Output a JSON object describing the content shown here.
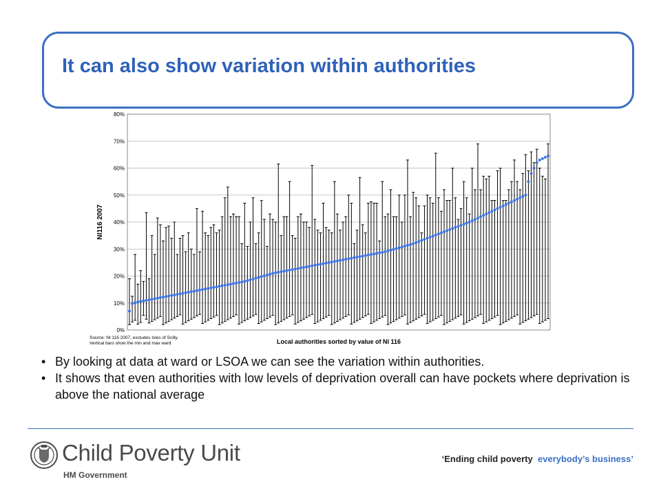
{
  "slide": {
    "title": "It can also show variation within authorities",
    "bullets": [
      "By looking at data at ward or LSOA we can see the variation within authorities.",
      "It shows that even authorities with low levels of deprivation overall can have pockets where deprivation is above the national average"
    ],
    "logo": {
      "name": "Child Poverty Unit",
      "sub": "HM Government",
      "icon": "crest-icon"
    },
    "slogan": {
      "part1": "‘Ending child poverty",
      "part2": "everybody’s business’"
    },
    "colors": {
      "accent": "#3b6fc4",
      "title": "#2f62b8",
      "marker": "#3d72e0"
    }
  },
  "chart_data": {
    "type": "scatter",
    "xlabel": "Local authorities sorted by value of NI 116",
    "ylabel": "NI116 2007",
    "ylim": [
      0,
      80
    ],
    "yticks": [
      0,
      10,
      20,
      30,
      40,
      50,
      60,
      70,
      80
    ],
    "ytick_labels": [
      "0%",
      "10%",
      "20%",
      "30%",
      "40%",
      "50%",
      "60%",
      "70%",
      "80%"
    ],
    "grid": true,
    "source_lines": [
      "Source: NI 116 2007, excludes Isles of Scilly.",
      "Vertical bars show the min and max ward"
    ],
    "series": [
      {
        "x": [
          1,
          2,
          3,
          4,
          5,
          6,
          7,
          8,
          9,
          10,
          11,
          12,
          13,
          14,
          15,
          16,
          17,
          18,
          19,
          20,
          21,
          22,
          23,
          24,
          25,
          26,
          27,
          28,
          29,
          30,
          31,
          32,
          33,
          34,
          35,
          36,
          37,
          38,
          39,
          40,
          41,
          42,
          43,
          44,
          45,
          46,
          47,
          48,
          49,
          50,
          51,
          52,
          53,
          54,
          55,
          56,
          57,
          58,
          59,
          60,
          61,
          62,
          63,
          64,
          65,
          66,
          67,
          68,
          69,
          70,
          71,
          72,
          73,
          74,
          75,
          76,
          77,
          78,
          79,
          80,
          81,
          82,
          83,
          84,
          85,
          86,
          87,
          88,
          89,
          90,
          91,
          92,
          93,
          94,
          95,
          96,
          97,
          98,
          99,
          100,
          101,
          102,
          103,
          104,
          105,
          106,
          107,
          108,
          109,
          110,
          111,
          112,
          113,
          114,
          115,
          116,
          117,
          118,
          119,
          120,
          121,
          122,
          123,
          124,
          125,
          126,
          127,
          128,
          129,
          130,
          131,
          132,
          133,
          134,
          135,
          136,
          137,
          138,
          139,
          140,
          141,
          142,
          143,
          144,
          145,
          146,
          147,
          148,
          149,
          150
        ],
        "value": [
          7.0,
          9.8,
          10.1,
          10.4,
          10.6,
          10.8,
          11.0,
          11.2,
          11.4,
          11.6,
          11.8,
          12.0,
          12.2,
          12.4,
          12.6,
          12.8,
          13.0,
          13.2,
          13.4,
          13.6,
          13.8,
          14.0,
          14.2,
          14.4,
          14.6,
          14.8,
          15.0,
          15.2,
          15.4,
          15.6,
          15.8,
          16.0,
          16.2,
          16.4,
          16.6,
          16.8,
          17.0,
          17.2,
          17.4,
          17.6,
          17.8,
          18.0,
          18.3,
          18.6,
          18.9,
          19.2,
          19.5,
          19.8,
          20.1,
          20.4,
          20.7,
          21.0,
          21.2,
          21.4,
          21.6,
          21.8,
          22.0,
          22.2,
          22.4,
          22.6,
          22.8,
          23.0,
          23.2,
          23.4,
          23.6,
          23.8,
          24.0,
          24.2,
          24.4,
          24.6,
          24.8,
          25.0,
          25.2,
          25.4,
          25.6,
          25.8,
          26.0,
          26.2,
          26.4,
          26.6,
          26.8,
          27.0,
          27.2,
          27.4,
          27.6,
          27.8,
          28.0,
          28.2,
          28.4,
          28.6,
          28.8,
          29.0,
          29.3,
          29.6,
          29.9,
          30.2,
          30.5,
          30.8,
          31.1,
          31.4,
          31.7,
          32.0,
          32.4,
          32.8,
          33.2,
          33.6,
          34.0,
          34.4,
          34.8,
          35.2,
          35.6,
          36.0,
          36.4,
          36.8,
          37.2,
          37.6,
          38.0,
          38.4,
          38.8,
          39.2,
          39.6,
          40.0,
          40.5,
          41.0,
          41.5,
          42.0,
          42.5,
          43.0,
          43.5,
          44.0,
          44.5,
          45.0,
          45.5,
          46.0,
          46.5,
          47.0,
          47.5,
          48.0,
          48.5,
          49.0,
          49.5,
          50.0,
          55.0,
          58.0,
          60.0,
          62.0,
          63.0,
          63.5,
          64.0,
          64.5
        ],
        "min": [
          2.0,
          3.0,
          3.6,
          2.2,
          2.8,
          5.4,
          4.0,
          2.6,
          3.2,
          3.8,
          4.4,
          5.0,
          2.0,
          2.6,
          3.2,
          3.8,
          4.4,
          5.0,
          5.6,
          2.2,
          2.8,
          3.4,
          4.0,
          4.6,
          5.2,
          5.8,
          2.4,
          3.0,
          3.6,
          4.2,
          4.8,
          5.4,
          2.0,
          2.6,
          3.2,
          3.8,
          4.4,
          5.0,
          5.6,
          2.2,
          2.8,
          3.4,
          4.0,
          4.6,
          5.2,
          5.8,
          2.4,
          3.0,
          3.6,
          4.2,
          4.8,
          5.4,
          2.0,
          2.6,
          3.2,
          3.8,
          4.4,
          5.0,
          5.6,
          2.2,
          2.8,
          3.4,
          4.0,
          4.6,
          5.2,
          5.8,
          2.4,
          3.0,
          3.6,
          4.2,
          4.8,
          5.4,
          2.0,
          2.6,
          3.2,
          3.8,
          4.4,
          5.0,
          5.6,
          2.2,
          2.8,
          3.4,
          4.0,
          4.6,
          5.2,
          5.8,
          2.4,
          3.0,
          3.6,
          4.2,
          4.8,
          5.4,
          2.0,
          2.6,
          3.2,
          3.8,
          4.4,
          5.0,
          5.6,
          2.2,
          2.8,
          3.4,
          4.0,
          4.6,
          5.2,
          5.8,
          2.4,
          3.0,
          3.6,
          4.2,
          4.8,
          5.4,
          2.0,
          2.6,
          3.2,
          3.8,
          4.4,
          5.0,
          5.6,
          2.2,
          2.8,
          3.4,
          4.0,
          4.6,
          5.2,
          5.8,
          2.4,
          3.0,
          3.6,
          4.2,
          4.8,
          5.4,
          2.0,
          2.6,
          3.2,
          3.8,
          4.4,
          5.0,
          5.6,
          2.2,
          2.8,
          3.4,
          4.0,
          4.6,
          5.2,
          5.8,
          2.4,
          3.0,
          3.6,
          4.2
        ],
        "max": [
          19.0,
          12.5,
          28.0,
          17.0,
          22.0,
          18.0,
          43.5,
          19.0,
          35.0,
          28.0,
          41.5,
          39.0,
          33.0,
          38.0,
          38.5,
          34.0,
          40.0,
          28.0,
          34.0,
          35.0,
          29.0,
          36.0,
          30.0,
          28.0,
          45.0,
          29.0,
          44.0,
          36.0,
          35.0,
          38.0,
          39.0,
          36.0,
          37.0,
          42.0,
          49.0,
          53.0,
          42.0,
          43.0,
          42.0,
          42.0,
          32.0,
          47.0,
          31.0,
          40.0,
          49.0,
          32.0,
          36.0,
          48.0,
          41.0,
          31.0,
          43.0,
          41.0,
          40.0,
          61.5,
          35.0,
          42.0,
          42.0,
          55.0,
          35.0,
          34.0,
          42.0,
          43.0,
          40.0,
          40.0,
          38.0,
          61.0,
          41.0,
          37.0,
          36.0,
          47.0,
          38.0,
          37.0,
          36.0,
          55.0,
          43.0,
          37.0,
          40.0,
          42.0,
          50.0,
          47.0,
          32.0,
          37.0,
          56.5,
          39.0,
          36.0,
          47.0,
          47.5,
          47.0,
          47.0,
          33.0,
          55.0,
          42.0,
          43.0,
          52.0,
          42.0,
          42.0,
          50.0,
          40.0,
          50.0,
          63.0,
          42.0,
          51.0,
          49.0,
          46.0,
          36.0,
          46.0,
          50.0,
          49.0,
          47.0,
          65.5,
          49.0,
          44.0,
          52.0,
          48.0,
          48.0,
          60.0,
          49.0,
          41.0,
          45.0,
          55.0,
          49.0,
          43.0,
          60.0,
          52.0,
          69.0,
          52.0,
          57.0,
          56.0,
          57.0,
          48.0,
          48.0,
          59.0,
          60.0,
          48.0,
          48.0,
          52.0,
          55.0,
          63.0,
          55.0,
          52.0,
          58.0,
          65.0,
          59.0,
          66.0,
          62.0,
          67.0,
          60.0,
          57.0,
          56.0,
          69.0
        ]
      }
    ]
  }
}
